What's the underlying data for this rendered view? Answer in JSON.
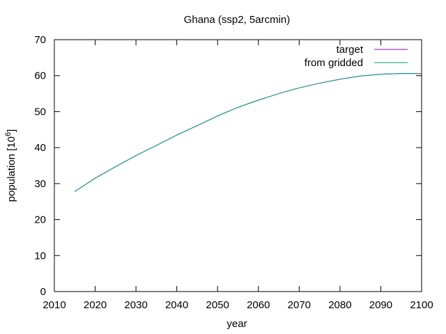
{
  "chart_data": {
    "type": "line",
    "title": "Ghana (ssp2, 5arcmin)",
    "xlabel": "year",
    "ylabel_base": "population [10",
    "ylabel_exp": "6",
    "ylabel_close": "]",
    "xlim": [
      2010,
      2100
    ],
    "ylim": [
      0,
      70
    ],
    "xticks": [
      2010,
      2020,
      2030,
      2040,
      2050,
      2060,
      2070,
      2080,
      2090,
      2100
    ],
    "yticks": [
      0,
      10,
      20,
      30,
      40,
      50,
      60,
      70
    ],
    "grid": false,
    "legend_position": "top-right",
    "series": [
      {
        "name": "target",
        "color": "#9400d3",
        "x": [
          2015,
          2020,
          2025,
          2030,
          2035,
          2040,
          2045,
          2050,
          2055,
          2060,
          2065,
          2070,
          2075,
          2080,
          2085,
          2090,
          2095,
          2100
        ],
        "y": [
          27.8,
          31.5,
          34.7,
          37.8,
          40.6,
          43.5,
          46.1,
          48.8,
          51.2,
          53.2,
          55.0,
          56.6,
          57.9,
          59.0,
          59.9,
          60.4,
          60.6,
          60.6
        ]
      },
      {
        "name": "from gridded",
        "color": "#009e73",
        "x": [
          2015,
          2020,
          2025,
          2030,
          2035,
          2040,
          2045,
          2050,
          2055,
          2060,
          2065,
          2070,
          2075,
          2080,
          2085,
          2090,
          2095,
          2100
        ],
        "y": [
          27.8,
          31.5,
          34.7,
          37.8,
          40.6,
          43.5,
          46.1,
          48.8,
          51.2,
          53.2,
          55.0,
          56.6,
          57.9,
          59.0,
          59.9,
          60.4,
          60.6,
          60.6
        ]
      }
    ]
  }
}
